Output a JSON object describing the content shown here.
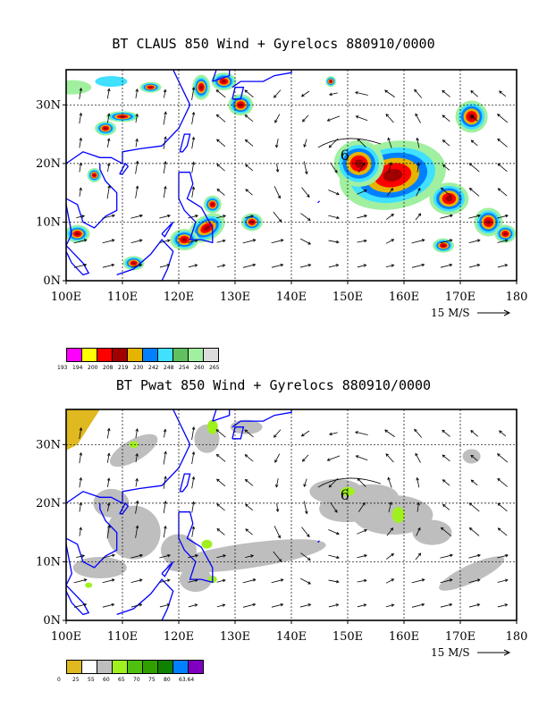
{
  "panels": [
    {
      "id": "claus",
      "title": "BT CLAUS 850 Wind + Gyrelocs 880910/0000",
      "legend_colors": [
        "#ff00ff",
        "#ffff00",
        "#ff0000",
        "#a00000",
        "#e6b400",
        "#0080ff",
        "#40e0ff",
        "#60c060",
        "#a0f0a0",
        "#dcdcdc"
      ],
      "legend_labels": [
        "193",
        "194",
        "200",
        "208",
        "219",
        "230",
        "242",
        "248",
        "254",
        "260",
        "265"
      ]
    },
    {
      "id": "pwat",
      "title": "BT Pwat 850 Wind + Gyrelocs 880910/0000",
      "legend_colors": [
        "#e0b820",
        "#ffffff",
        "#bebebe",
        "#a0f020",
        "#50c010",
        "#30a000",
        "#108000",
        "#0080ff",
        "#8000c0"
      ],
      "legend_labels": [
        "0",
        "25",
        "55",
        "60",
        "65",
        "70",
        "75",
        "80",
        "63.64"
      ]
    }
  ],
  "chart_data": [
    {
      "type": "heatmap",
      "title": "BT CLAUS 850 Wind + Gyrelocs 880910/0000",
      "x_ticks": [
        "100E",
        "110E",
        "120E",
        "130E",
        "140E",
        "150E",
        "160E",
        "170E",
        "180"
      ],
      "y_ticks": [
        "0N",
        "10N",
        "20N",
        "30N"
      ],
      "xlim": [
        100,
        180
      ],
      "ylim": [
        0,
        36
      ],
      "grid": true,
      "reference_vector": "15 M/S",
      "cyclone_symbol": {
        "lon": 149.5,
        "lat": 21.5,
        "glyph": "6"
      },
      "color_levels": [
        193,
        194,
        200,
        208,
        219,
        230,
        242,
        248,
        254,
        260,
        265
      ]
    },
    {
      "type": "heatmap",
      "title": "BT Pwat 850 Wind + Gyrelocs 880910/0000",
      "x_ticks": [
        "100E",
        "110E",
        "120E",
        "130E",
        "140E",
        "150E",
        "160E",
        "170E",
        "180"
      ],
      "y_ticks": [
        "0N",
        "10N",
        "20N",
        "30N"
      ],
      "xlim": [
        100,
        180
      ],
      "ylim": [
        0,
        36
      ],
      "grid": true,
      "reference_vector": "15 M/S",
      "cyclone_symbol": {
        "lon": 149.5,
        "lat": 21.5,
        "glyph": "6"
      },
      "color_levels": [
        0,
        25,
        55,
        60,
        65,
        70,
        75,
        80,
        63.64
      ]
    }
  ]
}
